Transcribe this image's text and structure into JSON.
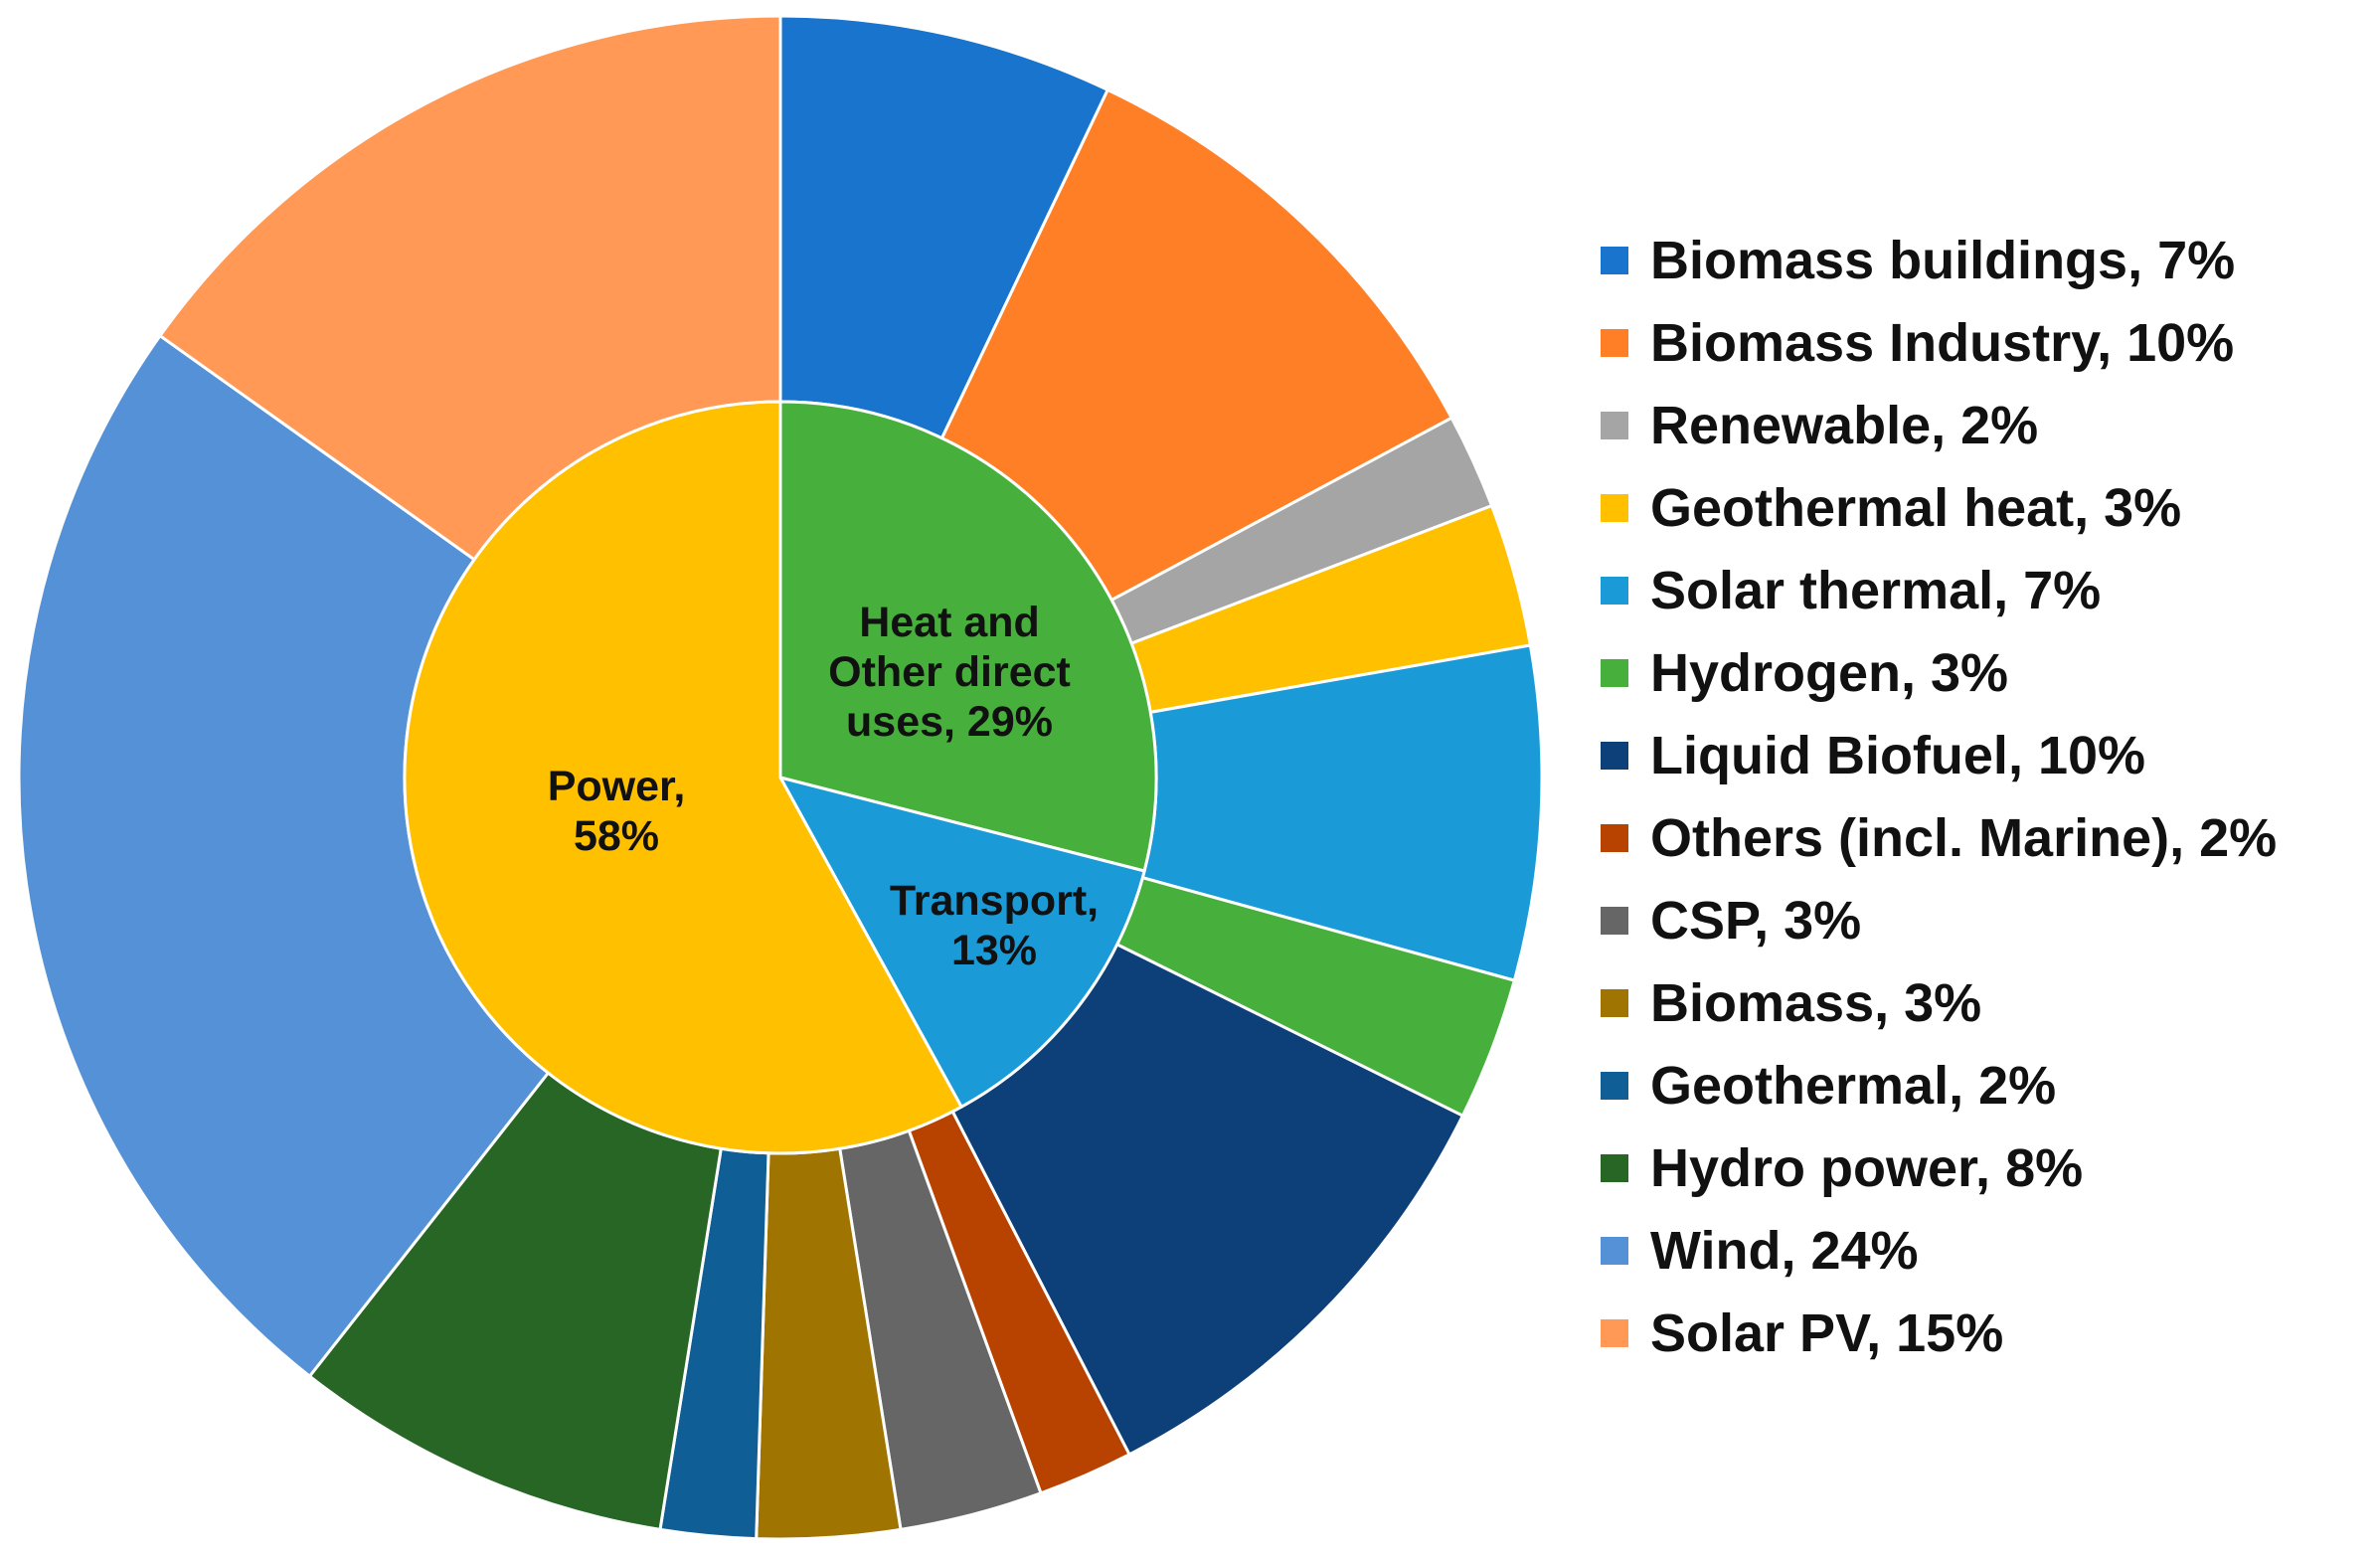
{
  "chart_data": {
    "type": "pie",
    "subtype": "nested-donut",
    "title": "",
    "inner_ring": {
      "slices": [
        {
          "label": "Heat and Other direct uses, 29%",
          "lines": [
            "Heat and",
            "Other direct",
            "uses, 29%"
          ],
          "value": 29,
          "color": "#47B03C"
        },
        {
          "label": "Transport, 13%",
          "lines": [
            "Transport,",
            "13%"
          ],
          "value": 13,
          "color": "#1A9BD8"
        },
        {
          "label": "Power, 58%",
          "lines": [
            "Power,",
            "58%"
          ],
          "value": 58,
          "color": "#FFC000"
        }
      ]
    },
    "outer_ring": {
      "slices": [
        {
          "label": "Biomass buildings, 7%",
          "value": 7,
          "color": "#1874CD"
        },
        {
          "label": "Biomass Industry, 10%",
          "value": 10,
          "color": "#FF7F27"
        },
        {
          "label": "Renewable, 2%",
          "value": 2,
          "color": "#A5A5A5"
        },
        {
          "label": "Geothermal heat, 3%",
          "value": 3,
          "color": "#FFC000"
        },
        {
          "label": "Solar thermal, 7%",
          "value": 7,
          "color": "#1A9BD8"
        },
        {
          "label": "Hydrogen, 3%",
          "value": 3,
          "color": "#47B03C"
        },
        {
          "label": "Liquid Biofuel, 10%",
          "value": 10,
          "color": "#0D3F78"
        },
        {
          "label": "Others (incl. Marine), 2%",
          "value": 2,
          "color": "#B84300"
        },
        {
          "label": "CSP, 3%",
          "value": 3,
          "color": "#666666"
        },
        {
          "label": "Biomass, 3%",
          "value": 3,
          "color": "#A07400"
        },
        {
          "label": "Geothermal, 2%",
          "value": 2,
          "color": "#0F5E96"
        },
        {
          "label": "Hydro power, 8%",
          "value": 8,
          "color": "#276624"
        },
        {
          "label": "Wind, 24%",
          "value": 24,
          "color": "#5591D6"
        },
        {
          "label": "Solar PV, 15%",
          "value": 15,
          "color": "#FF9955"
        }
      ]
    },
    "legend": {
      "position": "right",
      "entries": [
        {
          "label": "Biomass buildings, 7%",
          "color": "#1874CD"
        },
        {
          "label": "Biomass Industry, 10%",
          "color": "#FF7F27"
        },
        {
          "label": "Renewable, 2%",
          "color": "#A5A5A5"
        },
        {
          "label": "Geothermal heat, 3%",
          "color": "#FFC000"
        },
        {
          "label": "Solar thermal, 7%",
          "color": "#1A9BD8"
        },
        {
          "label": "Hydrogen, 3%",
          "color": "#47B03C"
        },
        {
          "label": "Liquid Biofuel, 10%",
          "color": "#0D3F78"
        },
        {
          "label": "Others (incl. Marine), 2%",
          "color": "#B84300"
        },
        {
          "label": "CSP, 3%",
          "color": "#666666"
        },
        {
          "label": "Biomass, 3%",
          "color": "#A07400"
        },
        {
          "label": "Geothermal, 2%",
          "color": "#0F5E96"
        },
        {
          "label": "Hydro power, 8%",
          "color": "#276624"
        },
        {
          "label": "Wind, 24%",
          "color": "#5591D6"
        },
        {
          "label": "Solar PV, 15%",
          "color": "#FF9955"
        }
      ]
    },
    "start_angle": "12 o'clock",
    "direction": "clockwise"
  }
}
